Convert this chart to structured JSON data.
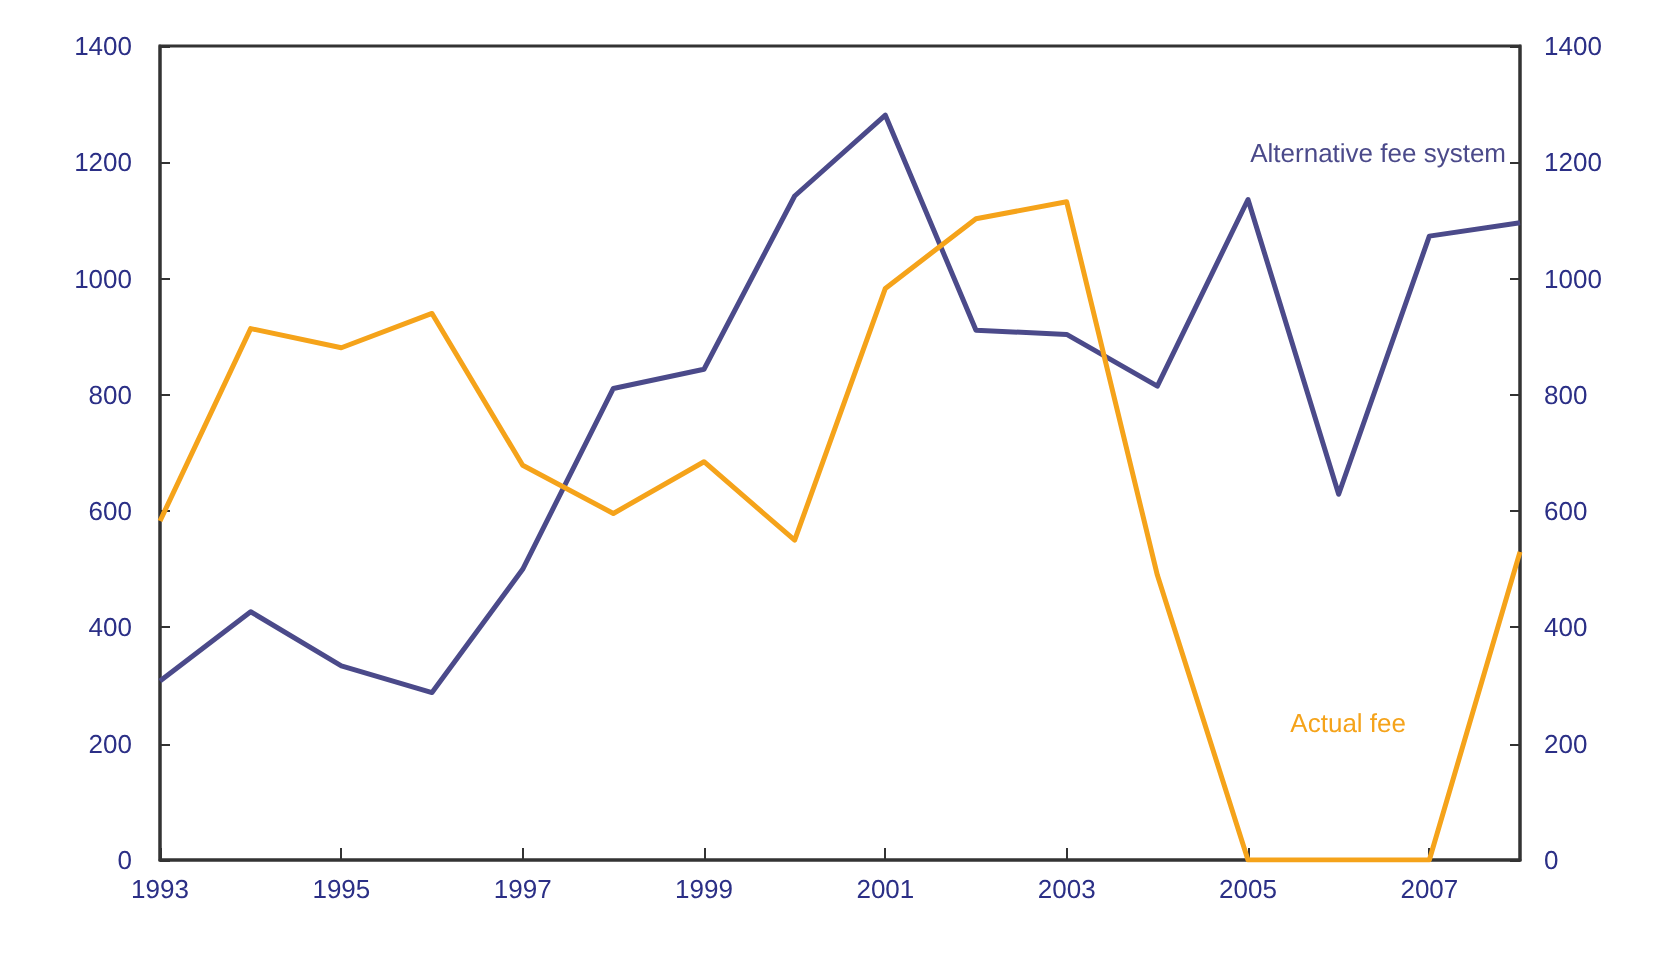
{
  "chart_data": {
    "type": "line",
    "x": [
      1993,
      1994,
      1995,
      1996,
      1997,
      1998,
      1999,
      2000,
      2001,
      2002,
      2003,
      2004,
      2005,
      2006,
      2007,
      2008
    ],
    "series": [
      {
        "name": "Alternative fee system",
        "color": "#4b4a8a",
        "values": [
          308,
          427,
          334,
          288,
          500,
          811,
          844,
          1142,
          1281,
          911,
          904,
          815,
          1136,
          629,
          1073,
          1096
        ]
      },
      {
        "name": "Actual fee",
        "color": "#f5a31a",
        "values": [
          583,
          914,
          881,
          940,
          679,
          596,
          685,
          550,
          983,
          1103,
          1132,
          490,
          0,
          0,
          0,
          530
        ]
      }
    ],
    "xlim": [
      1993,
      2008
    ],
    "xticks": [
      1993,
      1995,
      1997,
      1999,
      2001,
      2003,
      2005,
      2007
    ],
    "ylim": [
      0,
      1400
    ],
    "yticks": [
      0,
      200,
      400,
      600,
      800,
      1000,
      1200,
      1400
    ],
    "y2lim": [
      0,
      1400
    ],
    "y2ticks": [
      0,
      200,
      400,
      600,
      800,
      1000,
      1200,
      1400
    ],
    "grid": false,
    "legend": false,
    "marker": "none",
    "line_style": "solid"
  }
}
